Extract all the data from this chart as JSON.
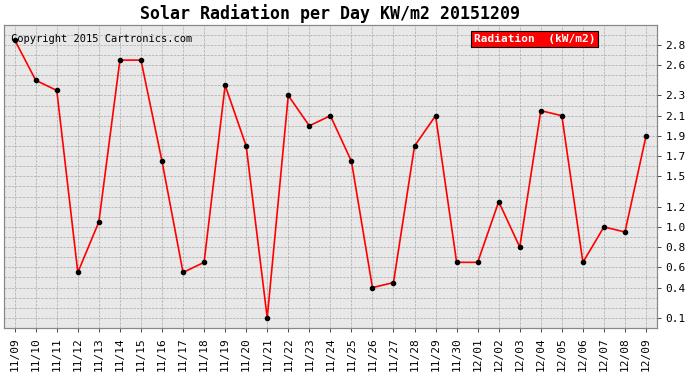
{
  "title": "Solar Radiation per Day KW/m2 20151209",
  "copyright_text": "Copyright 2015 Cartronics.com",
  "legend_label": "Radiation  (kW/m2)",
  "x_labels": [
    "11/09",
    "11/10",
    "11/11",
    "11/12",
    "11/13",
    "11/14",
    "11/15",
    "11/16",
    "11/17",
    "11/18",
    "11/19",
    "11/20",
    "11/21",
    "11/22",
    "11/23",
    "11/24",
    "11/25",
    "11/26",
    "11/27",
    "11/28",
    "11/29",
    "11/30",
    "12/01",
    "12/02",
    "12/03",
    "12/04",
    "12/05",
    "12/06",
    "12/07",
    "12/08",
    "12/09"
  ],
  "y_values": [
    2.85,
    2.45,
    2.35,
    0.55,
    1.05,
    2.65,
    2.65,
    1.65,
    0.55,
    0.65,
    2.4,
    1.8,
    0.1,
    2.3,
    2.0,
    2.1,
    1.65,
    0.4,
    0.45,
    1.8,
    2.1,
    0.65,
    0.65,
    1.25,
    0.8,
    2.15,
    2.1,
    0.65,
    1.0,
    0.95,
    1.9
  ],
  "line_color": "red",
  "marker_color": "black",
  "marker_style": "o",
  "marker_size": 3,
  "line_width": 1.2,
  "bg_color": "#e8e8e8",
  "grid_color": "#aaaaaa",
  "yticks": [
    0.1,
    0.2,
    0.3,
    0.4,
    0.5,
    0.6,
    0.7,
    0.8,
    0.9,
    1.0,
    1.1,
    1.2,
    1.3,
    1.4,
    1.5,
    1.6,
    1.7,
    1.8,
    1.9,
    2.0,
    2.1,
    2.2,
    2.3,
    2.4,
    2.5,
    2.6,
    2.7,
    2.8,
    2.9
  ],
  "ytick_labels_right": [
    "0.1",
    "",
    "",
    "0.4",
    "",
    "0.6",
    "",
    "0.8",
    "",
    "1.0",
    "",
    "1.2",
    "",
    "",
    "1.5",
    "",
    "1.7",
    "",
    "1.9",
    "",
    "2.1",
    "",
    "2.3",
    "",
    "",
    "2.6",
    "",
    "2.8",
    ""
  ],
  "ytick_major_labels": [
    "0.1",
    "0.4",
    "0.6",
    "0.8",
    "1.0",
    "1.2",
    "1.5",
    "1.7",
    "1.9",
    "2.1",
    "2.3",
    "2.6",
    "2.8"
  ],
  "right_yticks": [
    0.1,
    0.4,
    0.6,
    0.8,
    1.0,
    1.2,
    1.5,
    1.7,
    1.9,
    2.1,
    2.3,
    2.6,
    2.8
  ],
  "right_ytick_labels": [
    "0.1",
    "0.4",
    "0.6",
    "0.8",
    "1.0",
    "1.2",
    "1.5",
    "1.7",
    "1.9",
    "2.1",
    "2.3",
    "2.6",
    "2.8"
  ],
  "ylim": [
    0.0,
    3.0
  ],
  "title_fontsize": 12,
  "tick_fontsize": 8,
  "copyright_fontsize": 7.5
}
